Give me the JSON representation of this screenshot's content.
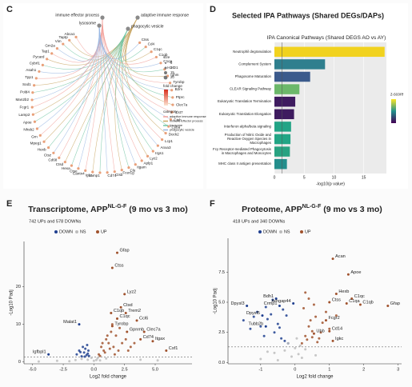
{
  "chart_data": [
    {
      "panel": "C",
      "type": "network",
      "hubs": [
        "immune effector process",
        "adaptive immune response",
        "phagocytic vesicle",
        "lysosome"
      ],
      "nodes": [
        "Abca1",
        "Taptp",
        "Vim",
        "Gm2a",
        "Tap1",
        "Pycard",
        "Cybrl1",
        "Asah1",
        "Tpp1",
        "Sod1",
        "Pold4",
        "Man2b2",
        "Fcgr1",
        "Lamp2",
        "Apoe",
        "Nhsb2",
        "Grn",
        "Mpeg1",
        "Hexb",
        "Ctsz",
        "Cd68",
        "Ctsd",
        "Hexa",
        "Ctse",
        "Cantn4",
        "Igkc",
        "Lamp1",
        "Cd74",
        "Ctsb",
        "Fcer1g",
        "Clu",
        "Itgam",
        "Aplp1",
        "Lyz2",
        "Irgs1",
        "Anxa3",
        "Lcp1",
        "Dock2",
        "Cyba",
        "Ctsh",
        "Cst7",
        "Clec7a",
        "Ptprc",
        "B2m",
        "Tyrobp",
        "Ighm",
        "H2-D1",
        "C1qa",
        "C1qb",
        "C1qc",
        "Cd4",
        "Ctss"
      ],
      "legend_size_title": "size",
      "size_ticks": [
        5,
        10,
        15,
        20
      ],
      "legend_color_title": "fold change",
      "legend_category_title": "category",
      "categories": [
        "adaptive immune response",
        "immune effector process",
        "lysosome",
        "phagocytic vesicle"
      ],
      "category_colors": [
        "#f2a29c",
        "#c9a865",
        "#72c6a4",
        "#98b6e2"
      ]
    },
    {
      "panel": "D",
      "type": "barh",
      "title": "Selected IPA Pathways (Shared DEGs/DAPs)",
      "subtitle": "IPA Canonical Pathways (Shared DEGS AO vs AY)",
      "categories": [
        "Neutrophil degranulation",
        "Complement System",
        "Phagosome Maturation",
        "CLEAR Signaling Pathway",
        "Eukaryotic Translation Termination",
        "Eukaryotic Translation Elongation",
        "Interferon alpha/beta signaling",
        "Production of Nitric Oxide and Reactive Oxygen Species in Macrophages",
        "Fcγ Receptor-mediated Phagocytosis in Macrophages and Monocytes",
        "MHC class II antigen presentation"
      ],
      "values": [
        18.5,
        8.5,
        6,
        4.2,
        3.5,
        3.3,
        2.8,
        2.7,
        2.6,
        2.1
      ],
      "colors": [
        "#f1d21f",
        "#2f7f8e",
        "#3b5a8c",
        "#6cb86a",
        "#3e1b5f",
        "#3e1b5f",
        "#22a486",
        "#22a585",
        "#28a281",
        "#238e8c"
      ],
      "threshold": 1.3,
      "xlim": [
        0,
        18.8
      ],
      "xticks": [
        0,
        5,
        10,
        15
      ],
      "xlabel": "-log10(p value)",
      "colorbar_title": "z-score"
    },
    {
      "panel": "E",
      "type": "volcano",
      "title": "Transcriptome, APP",
      "title_sup": "NL-G-F",
      "title_end": " (9 mo vs 3 mo)",
      "subtitle": "742 UPs and 578 DOWNs",
      "series": [
        {
          "name": "DOWN",
          "color": "#1f3f8f",
          "x": [
            -1.4,
            -1.2,
            -1.0,
            -0.9,
            -0.8,
            -0.7,
            -0.6,
            -0.5,
            -0.45,
            -0.4,
            -1.1,
            -0.75,
            -0.55
          ],
          "values": [
            2,
            3,
            1.5,
            4,
            2.5,
            3.5,
            1.8,
            2.2,
            3,
            1.6,
            2.6,
            1.4,
            4.5
          ]
        },
        {
          "name": "NS",
          "color": "#bdbdbd",
          "x": [
            -2,
            -1.5,
            -1,
            -0.5,
            0,
            0.3,
            0.5,
            1,
            -0.2,
            0.2,
            -3,
            -4.5,
            5.2,
            3.8
          ],
          "values": [
            0.2,
            0.5,
            0.8,
            0.6,
            0.3,
            1,
            0.4,
            0.9,
            1.1,
            0.5,
            0.3,
            0.1,
            0.4,
            0.6
          ]
        },
        {
          "name": "UP",
          "color": "#a0522d",
          "x": [
            0.4,
            0.6,
            0.8,
            1.0,
            1.2,
            1.4,
            1.6,
            1.8,
            2.0,
            2.3,
            2.6,
            3.0,
            0.5,
            0.9,
            1.3,
            1.7,
            2.1,
            0.7,
            1.1,
            1.5,
            2.8,
            3.3
          ],
          "values": [
            2,
            4,
            3,
            6,
            5,
            8,
            4,
            7,
            3,
            5,
            6,
            4,
            1.6,
            2.5,
            3.5,
            2,
            9,
            5,
            7,
            10,
            3,
            5
          ]
        }
      ],
      "annotations": [
        {
          "label": "Gfap",
          "x": 1.9,
          "y": 29
        },
        {
          "label": "Ctss",
          "x": 1.5,
          "y": 25
        },
        {
          "label": "Lyz2",
          "x": 2.5,
          "y": 18
        },
        {
          "label": "Ctsd",
          "x": 2.2,
          "y": 14.5
        },
        {
          "label": "Trem2",
          "x": 2.6,
          "y": 13
        },
        {
          "label": "C1qb",
          "x": 1.4,
          "y": 13
        },
        {
          "label": "C1qc",
          "x": 1.9,
          "y": 11.5
        },
        {
          "label": "Ccl6",
          "x": 3.5,
          "y": 11
        },
        {
          "label": "Tyrobp",
          "x": 1.5,
          "y": 9.5
        },
        {
          "label": "Clec7a",
          "x": 4.1,
          "y": 8
        },
        {
          "label": "Gpnmb",
          "x": 2.7,
          "y": 8
        },
        {
          "label": "Cd74",
          "x": 3.8,
          "y": 6
        },
        {
          "label": "Itgax",
          "x": 4.8,
          "y": 5.5
        },
        {
          "label": "Csf1",
          "x": 5.9,
          "y": 3
        },
        {
          "label": "Malat1",
          "x": -1.2,
          "y": 10
        },
        {
          "label": "Igfbpl1",
          "x": -3.7,
          "y": 2
        }
      ],
      "threshold": 1.3,
      "xlim": [
        -5.7,
        8
      ],
      "ylim": [
        -0.5,
        32
      ],
      "xticks": [
        {
          "value": -5,
          "label": "-5.0"
        },
        {
          "value": -2.5,
          "label": "-2.5"
        },
        {
          "value": 0,
          "label": "0.0"
        },
        {
          "value": 2.5,
          "label": "2.5"
        },
        {
          "value": 5,
          "label": "5.0"
        }
      ],
      "yticks": [
        0,
        10,
        20
      ],
      "xlabel": "Log2 fold change",
      "ylabel": "-Log10 Padj"
    },
    {
      "panel": "F",
      "type": "volcano",
      "title": "Proteome, APP",
      "title_sup": "NL-G-F",
      "title_end": " (9 mo vs 3 mo)",
      "subtitle": "418 UPs and 340 DOWNs",
      "series": [
        {
          "name": "DOWN",
          "color": "#1f3f8f",
          "x": [
            -1.5,
            -1.3,
            -1.1,
            -1.0,
            -0.9,
            -0.8,
            -0.7,
            -0.6,
            -0.5,
            -0.4,
            -0.3,
            -0.2,
            -0.25,
            -0.65,
            -0.85,
            -0.45,
            -1.2,
            -0.35
          ],
          "values": [
            3.5,
            2.8,
            4.2,
            3.0,
            2.2,
            3.6,
            4.0,
            2.5,
            3.2,
            2.0,
            1.8,
            1.6,
            3.9,
            5.2,
            4.6,
            2.9,
            3.8,
            4.4
          ]
        },
        {
          "name": "NS",
          "color": "#bdbdbd",
          "x": [
            -1,
            -0.6,
            -0.3,
            -0.1,
            0,
            0.1,
            0.2,
            0.3,
            -0.2,
            0.05,
            -0.5,
            0.15,
            0.6,
            -0.8
          ],
          "values": [
            0.3,
            0.8,
            1.0,
            0.5,
            1.2,
            0.7,
            0.4,
            1.1,
            1.6,
            2.0,
            0.2,
            1.4,
            0.6,
            0.9
          ]
        },
        {
          "name": "UP",
          "color": "#a0522d",
          "x": [
            0.2,
            0.3,
            0.4,
            0.5,
            0.6,
            0.7,
            0.8,
            0.9,
            1.0,
            0.25,
            0.35,
            0.45,
            0.55,
            0.65,
            0.75,
            1.2,
            0.4,
            0.3,
            0.5
          ],
          "values": [
            1.6,
            2.2,
            3.0,
            2.6,
            3.8,
            2.0,
            3.3,
            4.2,
            2.8,
            4.5,
            1.9,
            3.5,
            4.8,
            1.7,
            2.5,
            3.9,
            5.3,
            5.8,
            2.1
          ]
        }
      ],
      "annotations": [
        {
          "label": "Acan",
          "x": 1.1,
          "y": 8.6
        },
        {
          "label": "Apoe",
          "x": 1.55,
          "y": 7.3
        },
        {
          "label": "Hexb",
          "x": 1.2,
          "y": 5.7
        },
        {
          "label": "Ctss",
          "x": 1.0,
          "y": 5.0
        },
        {
          "label": "C1qc",
          "x": 1.65,
          "y": 5.3
        },
        {
          "label": "C1qa",
          "x": 1.5,
          "y": 4.9
        },
        {
          "label": "C1qb",
          "x": 1.9,
          "y": 4.8
        },
        {
          "label": "Gfap",
          "x": 2.7,
          "y": 4.7
        },
        {
          "label": "Fcgr2",
          "x": 0.9,
          "y": 3.5
        },
        {
          "label": "Cd14",
          "x": 1.0,
          "y": 2.6
        },
        {
          "label": "Igkc",
          "x": 1.1,
          "y": 1.8
        },
        {
          "label": "Ubb",
          "x": 0.55,
          "y": 2.4
        },
        {
          "label": "Dpysl3",
          "x": -1.4,
          "y": 4.7
        },
        {
          "label": "Bdh1",
          "x": -0.55,
          "y": 5.3
        },
        {
          "label": "Crmp1",
          "x": -0.45,
          "y": 4.7
        },
        {
          "label": "Dpysl5",
          "x": -0.95,
          "y": 3.9
        },
        {
          "label": "Tubb2b",
          "x": -0.85,
          "y": 3.0
        },
        {
          "label": "Arhgap44",
          "x": -0.05,
          "y": 4.9
        }
      ],
      "threshold": 1.3,
      "xlim": [
        -1.95,
        3.1
      ],
      "ylim": [
        -0.1,
        10.3
      ],
      "xticks": [
        -1,
        0,
        1,
        2,
        3
      ],
      "yticks": [
        {
          "value": 0,
          "label": "0.0"
        },
        {
          "value": 2.5,
          "label": "2.5"
        },
        {
          "value": 5,
          "label": "5.0"
        },
        {
          "value": 7.5,
          "label": "7.5"
        }
      ],
      "xlabel": "Log2 fold change",
      "ylabel": "-Log10 Padj"
    }
  ]
}
